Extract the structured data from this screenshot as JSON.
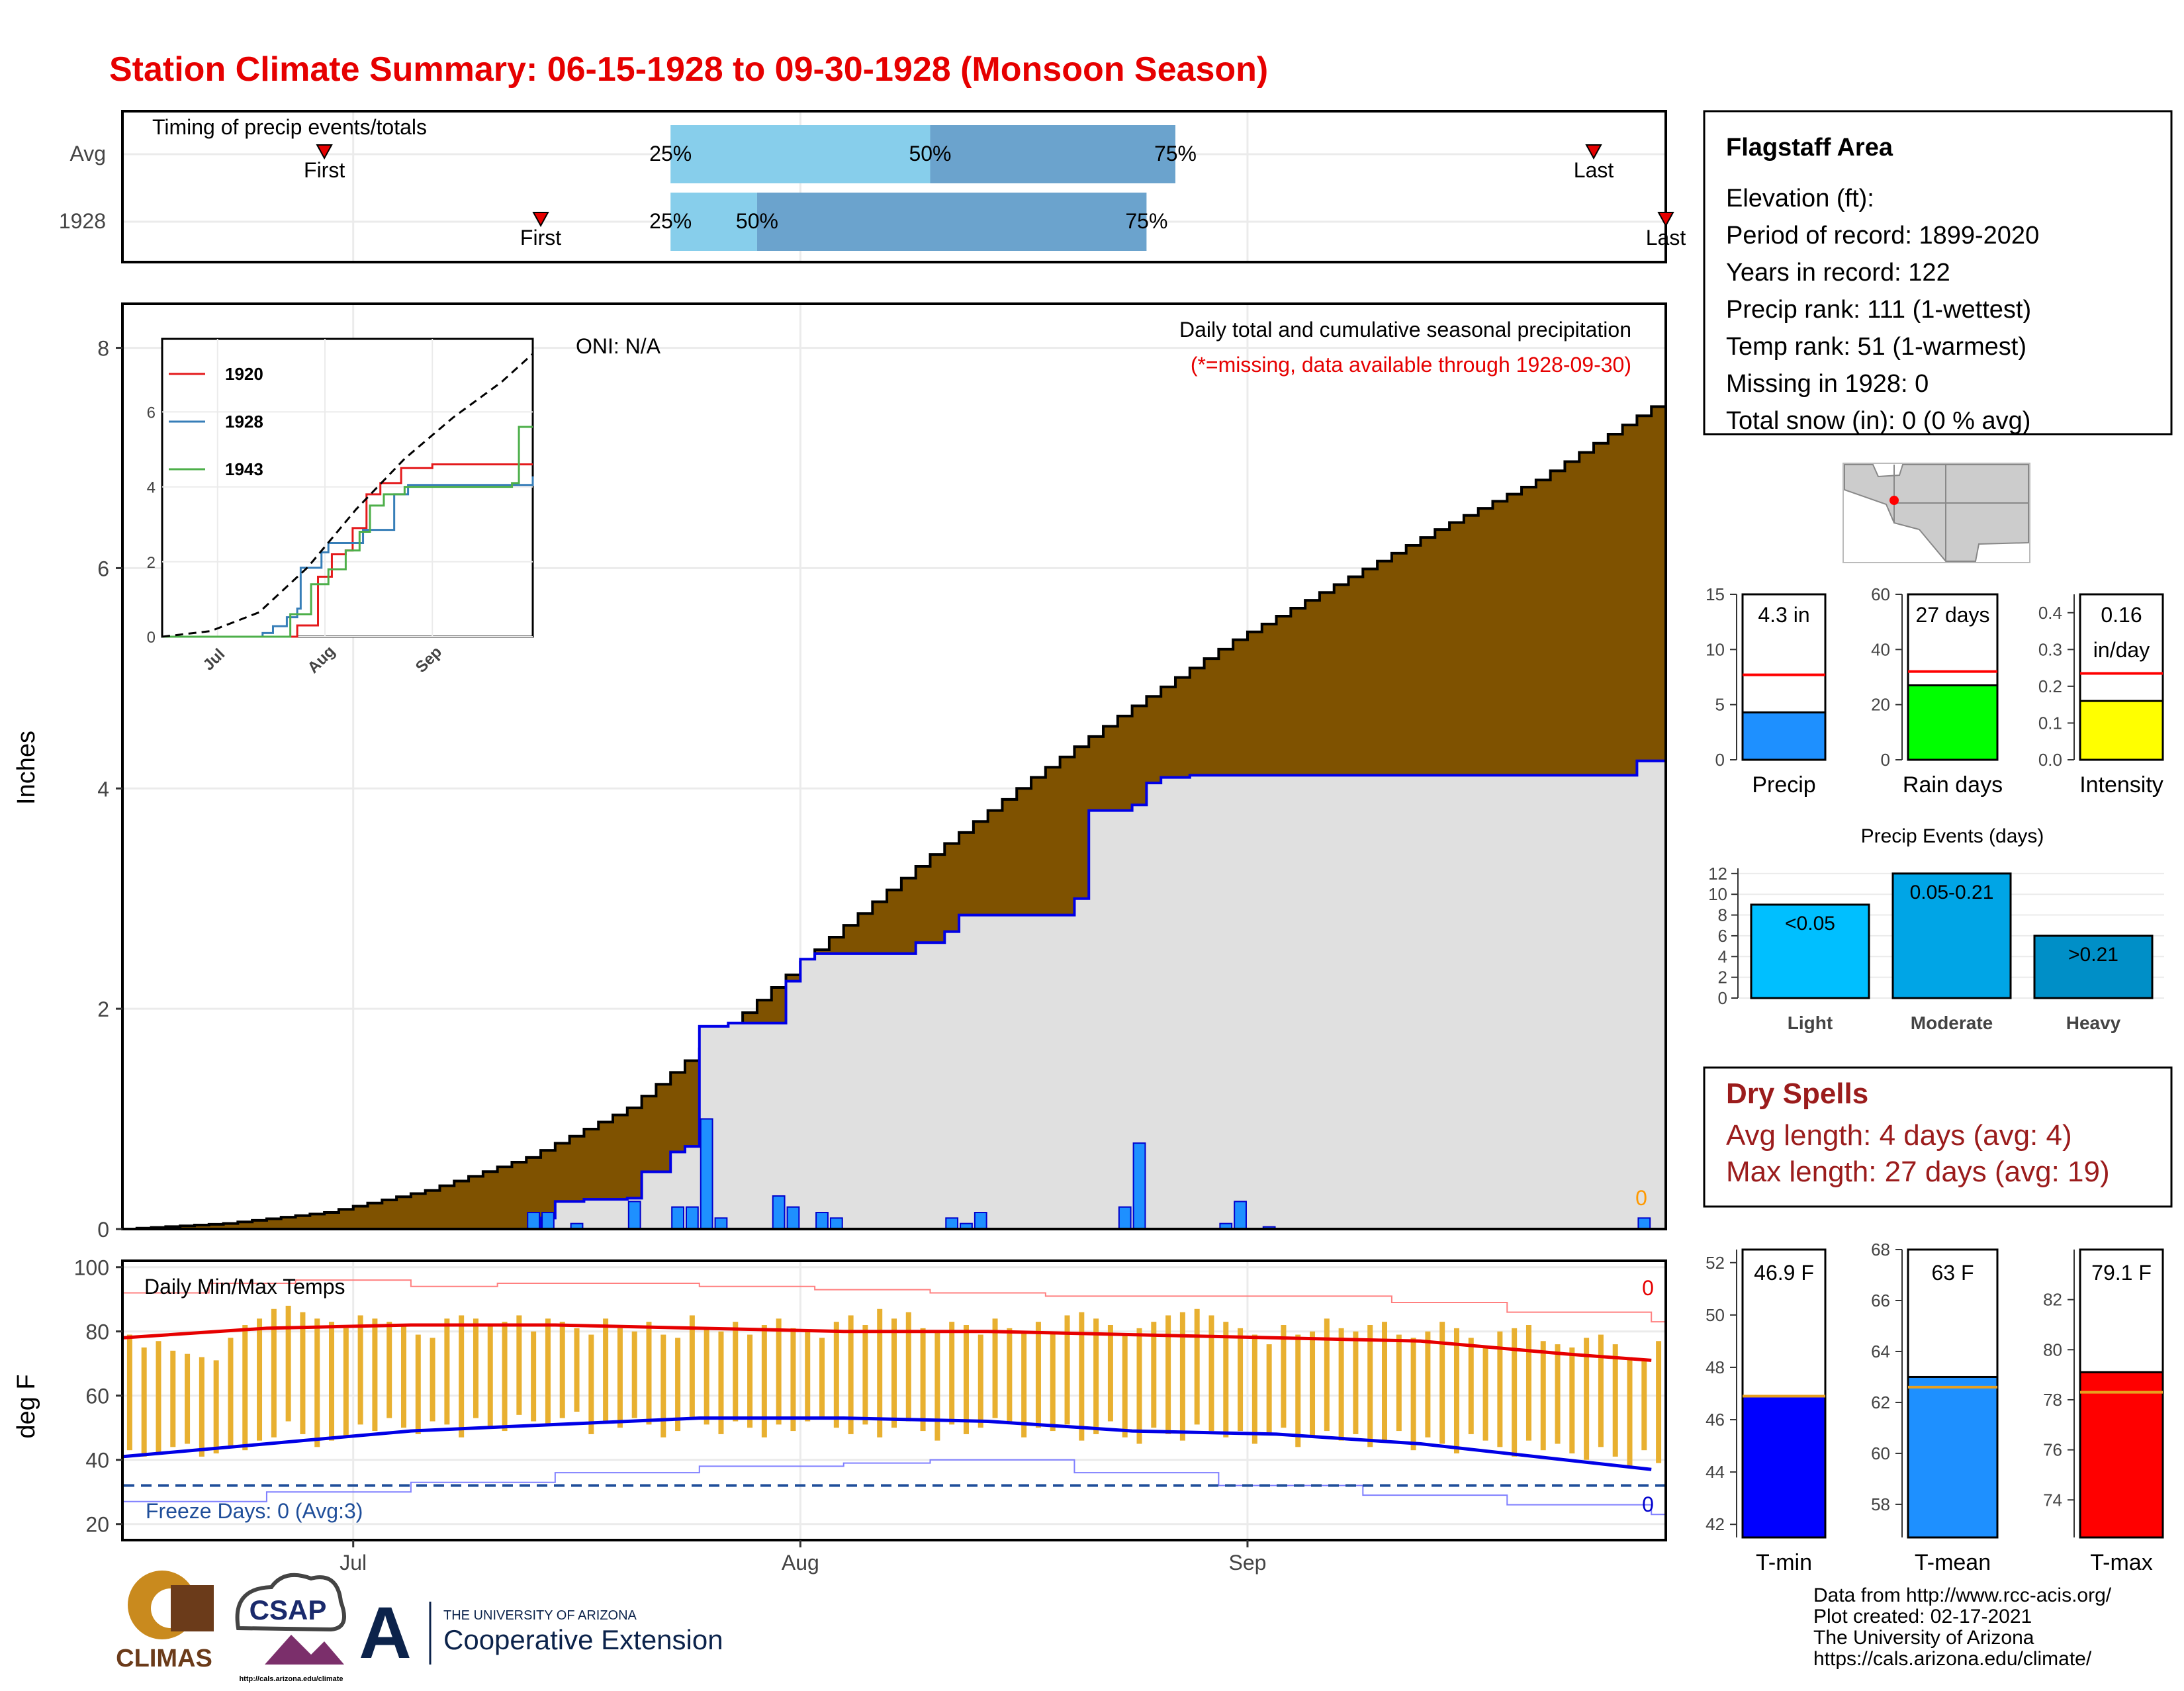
{
  "title": "Station Climate Summary: 06-15-1928 to 09-30-1928 (Monsoon Season)",
  "colors": {
    "title": "#e60000",
    "brown": "#7f5200",
    "blue": "#0000e6",
    "red": "#e60000",
    "gold": "#e8b030",
    "light_blue": "#87ceeb",
    "mid_blue": "#6ba3cd",
    "dry": "#9b1c1c",
    "gray": "#e0e0e0"
  },
  "timing": {
    "label": "Timing of precip events/totals",
    "rows": [
      {
        "name": "Avg",
        "first": "06-29",
        "p25": "07-23",
        "p50": "08-10",
        "p75": "08-27",
        "last": "09-25"
      },
      {
        "name": "1928",
        "first": "07-14",
        "p25": "07-23",
        "p50": "07-29",
        "p75": "08-25",
        "last": "09-30"
      }
    ],
    "first_label": "First",
    "last_label": "Last",
    "p25_label": "25%",
    "p50_label": "50%",
    "p75_label": "75%"
  },
  "station_box": {
    "title": "Flagstaff Area",
    "lines": [
      "Elevation (ft):",
      "Period of record: 1899-2020",
      "Years in record: 122",
      "Precip rank: 111 (1-wettest)",
      "Temp rank: 51 (1-warmest)",
      "Missing in 1928: 0",
      "Total snow (in): 0 (0 % avg)"
    ]
  },
  "precip_panel": {
    "ylabel": "Inches",
    "oni": "ONI: N/A",
    "caption": "Daily total and cumulative seasonal precipitation",
    "missing_note": "(*=missing, data available through 1928-09-30)",
    "missing_count": "0",
    "y_ticks": [
      "0",
      "2",
      "4",
      "6",
      "8"
    ],
    "x_ticks": [
      "Jul",
      "Aug",
      "Sep"
    ]
  },
  "inset": {
    "y_ticks": [
      "0",
      "2",
      "4",
      "6"
    ],
    "x_ticks": [
      "Jul",
      "Aug",
      "Sep"
    ],
    "legend": [
      {
        "name": "1920",
        "color": "#e41a1c"
      },
      {
        "name": "1928",
        "color": "#377eb8"
      },
      {
        "name": "1943",
        "color": "#4daf4a"
      }
    ]
  },
  "temp_panel": {
    "ylabel": "deg F",
    "title": "Daily Min/Max Temps",
    "freeze": "Freeze Days: 0 (Avg:3)",
    "max_count": "0",
    "min_count": "0",
    "y_ticks": [
      "20",
      "40",
      "60",
      "80",
      "100"
    ],
    "x_ticks": [
      "Jul",
      "Aug",
      "Sep"
    ]
  },
  "summary_bars": [
    {
      "name": "Precip",
      "label": "4.3 in",
      "value": 4.3,
      "avg": 7.7,
      "ymax": 15,
      "ticks": [
        "0",
        "5",
        "10",
        "15"
      ],
      "color": "#1e90ff"
    },
    {
      "name": "Rain days",
      "label": "27 days",
      "value": 27,
      "avg": 32,
      "ymax": 60,
      "ticks": [
        "0",
        "20",
        "40",
        "60"
      ],
      "color": "#00ff00"
    },
    {
      "name": "Intensity",
      "label": "0.16 in/day",
      "label_l1": "0.16",
      "label_l2": "in/day",
      "value": 0.16,
      "avg": 0.235,
      "ymax": 0.45,
      "ticks": [
        "0.0",
        "0.1",
        "0.2",
        "0.3",
        "0.4"
      ],
      "color": "#ffff00"
    }
  ],
  "events": {
    "title": "Precip Events (days)",
    "ticks": [
      "0",
      "2",
      "4",
      "6",
      "8",
      "10",
      "12"
    ],
    "bars": [
      {
        "cat": "Light",
        "label": "<0.05",
        "value": 9,
        "color": "#00bfff"
      },
      {
        "cat": "Moderate",
        "label": "0.05-0.21",
        "value": 12,
        "color": "#00a5e6"
      },
      {
        "cat": "Heavy",
        "label": ">0.21",
        "value": 6,
        "color": "#008fc7"
      }
    ]
  },
  "dry_spells": {
    "title": "Dry Spells",
    "avg": "Avg length: 4 days (avg: 4)",
    "max": "Max length: 27 days (avg: 19)"
  },
  "temp_bars": [
    {
      "name": "T-min",
      "label": "46.9 F",
      "value": 46.9,
      "avg": 46.9,
      "min": 41.5,
      "max": 52.5,
      "ticks": [
        "42",
        "44",
        "46",
        "48",
        "50",
        "52"
      ],
      "color": "#0000ff"
    },
    {
      "name": "T-mean",
      "label": "63 F",
      "value": 63,
      "avg": 62.6,
      "min": 56.7,
      "max": 68,
      "ticks": [
        "58",
        "60",
        "62",
        "64",
        "66",
        "68"
      ],
      "color": "#1e90ff"
    },
    {
      "name": "T-max",
      "label": "79.1 F",
      "value": 79.1,
      "avg": 78.3,
      "min": 72.5,
      "max": 84,
      "ticks": [
        "74",
        "76",
        "78",
        "80",
        "82"
      ],
      "color": "#ff0000"
    }
  ],
  "footer": {
    "lines": [
      "Data from http://www.rcc-acis.org/",
      "Plot created: 02-17-2021",
      "The University of Arizona",
      "https://cals.arizona.edu/climate/"
    ],
    "logo1": "CLIMAS",
    "logo2": "CSAP",
    "logo2_sub": "http://cals.arizona.edu/climate",
    "ua_small": "THE UNIVERSITY OF ARIZONA",
    "ua_big": "Cooperative Extension",
    "ua_letter": "A"
  },
  "chart_data": [
    {
      "type": "area",
      "title": "Daily total and cumulative seasonal precipitation",
      "ylabel": "Inches",
      "ylim": [
        0,
        8.4
      ],
      "x_start": "06-15",
      "x_end": "09-30",
      "series": [
        {
          "name": "Cumulative 1928",
          "points": [
            [
              "06-15",
              0
            ],
            [
              "07-14",
              0.1
            ],
            [
              "07-15",
              0.25
            ],
            [
              "07-17",
              0.27
            ],
            [
              "07-20",
              0.28
            ],
            [
              "07-21",
              0.52
            ],
            [
              "07-23",
              0.7
            ],
            [
              "07-24",
              0.75
            ],
            [
              "07-25",
              1.84
            ],
            [
              "07-27",
              1.87
            ],
            [
              "07-31",
              2.25
            ],
            [
              "08-01",
              2.45
            ],
            [
              "08-02",
              2.5
            ],
            [
              "08-09",
              2.6
            ],
            [
              "08-11",
              2.7
            ],
            [
              "08-12",
              2.85
            ],
            [
              "08-19",
              2.85
            ],
            [
              "08-20",
              3.0
            ],
            [
              "08-21",
              3.8
            ],
            [
              "08-24",
              3.85
            ],
            [
              "08-25",
              4.05
            ],
            [
              "08-26",
              4.1
            ],
            [
              "08-28",
              4.12
            ],
            [
              "09-28",
              4.25
            ],
            [
              "09-30",
              4.28
            ]
          ]
        },
        {
          "name": "Average cumulative",
          "points": [
            [
              "06-15",
              0
            ],
            [
              "06-22",
              0.05
            ],
            [
              "06-29",
              0.15
            ],
            [
              "07-06",
              0.35
            ],
            [
              "07-13",
              0.65
            ],
            [
              "07-20",
              1.1
            ],
            [
              "07-27",
              1.85
            ],
            [
              "08-03",
              2.65
            ],
            [
              "08-10",
              3.4
            ],
            [
              "08-17",
              4.1
            ],
            [
              "08-24",
              4.75
            ],
            [
              "08-31",
              5.35
            ],
            [
              "09-07",
              5.85
            ],
            [
              "09-14",
              6.35
            ],
            [
              "09-21",
              6.8
            ],
            [
              "09-30",
              7.55
            ]
          ]
        }
      ],
      "daily": [
        [
          "07-13",
          0.15
        ],
        [
          "07-14",
          0.15
        ],
        [
          "07-16",
          0.05
        ],
        [
          "07-20",
          0.25
        ],
        [
          "07-23",
          0.2
        ],
        [
          "07-24",
          0.2
        ],
        [
          "07-25",
          1.0
        ],
        [
          "07-26",
          0.1
        ],
        [
          "07-30",
          0.3
        ],
        [
          "07-31",
          0.2
        ],
        [
          "08-02",
          0.15
        ],
        [
          "08-03",
          0.1
        ],
        [
          "08-11",
          0.1
        ],
        [
          "08-12",
          0.05
        ],
        [
          "08-13",
          0.15
        ],
        [
          "08-23",
          0.2
        ],
        [
          "08-24",
          0.78
        ],
        [
          "08-30",
          0.05
        ],
        [
          "08-31",
          0.25
        ],
        [
          "09-02",
          0.02
        ],
        [
          "09-28",
          0.1
        ]
      ]
    },
    {
      "type": "line",
      "title": "",
      "series": [
        {
          "name": "1920",
          "points": [
            [
              "06-15",
              0
            ],
            [
              "07-21",
              0
            ],
            [
              "07-24",
              0.3
            ],
            [
              "07-30",
              1.6
            ],
            [
              "08-03",
              2.2
            ],
            [
              "08-07",
              2.3
            ],
            [
              "08-09",
              2.9
            ],
            [
              "08-13",
              3.8
            ],
            [
              "08-17",
              4.1
            ],
            [
              "08-23",
              4.5
            ],
            [
              "09-01",
              4.6
            ],
            [
              "09-30",
              4.6
            ]
          ]
        },
        {
          "name": "1928",
          "points": [
            [
              "06-15",
              0
            ],
            [
              "07-14",
              0.1
            ],
            [
              "07-17",
              0.28
            ],
            [
              "07-21",
              0.52
            ],
            [
              "07-24",
              0.75
            ],
            [
              "07-25",
              1.84
            ],
            [
              "07-31",
              2.25
            ],
            [
              "08-02",
              2.5
            ],
            [
              "08-12",
              2.85
            ],
            [
              "08-21",
              3.8
            ],
            [
              "08-25",
              4.05
            ],
            [
              "09-30",
              4.28
            ]
          ]
        },
        {
          "name": "1943",
          "points": [
            [
              "06-15",
              0
            ],
            [
              "07-18",
              0
            ],
            [
              "07-22",
              0.6
            ],
            [
              "07-28",
              1.4
            ],
            [
              "08-02",
              1.8
            ],
            [
              "08-07",
              2.3
            ],
            [
              "08-11",
              2.8
            ],
            [
              "08-14",
              3.5
            ],
            [
              "08-18",
              3.8
            ],
            [
              "08-24",
              4.0
            ],
            [
              "09-24",
              4.1
            ],
            [
              "09-26",
              5.6
            ],
            [
              "09-30",
              5.6
            ]
          ]
        },
        {
          "name": "Average",
          "points": [
            [
              "06-15",
              0
            ],
            [
              "06-29",
              0.15
            ],
            [
              "07-13",
              0.65
            ],
            [
              "07-27",
              1.85
            ],
            [
              "08-10",
              3.4
            ],
            [
              "08-24",
              4.75
            ],
            [
              "09-07",
              5.85
            ],
            [
              "09-21",
              6.8
            ],
            [
              "09-30",
              7.55
            ]
          ]
        }
      ]
    },
    {
      "type": "bar",
      "title": "Daily Min/Max Temps",
      "ylabel": "deg F",
      "ylim": [
        15,
        102
      ],
      "mins": [
        43,
        41,
        42,
        44,
        45,
        41,
        42,
        44,
        43,
        46,
        47,
        52,
        48,
        44,
        46,
        47,
        51,
        49,
        53,
        50,
        48,
        52,
        51,
        47,
        53,
        50,
        49,
        54,
        52,
        51,
        53,
        55,
        48,
        52,
        50,
        53,
        51,
        47,
        49,
        53,
        51,
        48,
        52,
        50,
        47,
        51,
        49,
        52,
        53,
        50,
        48,
        51,
        47,
        50,
        52,
        49,
        46,
        51,
        48,
        50,
        53,
        52,
        47,
        50,
        49,
        51,
        46,
        48,
        52,
        47,
        45,
        50,
        48,
        46,
        51,
        49,
        47,
        49,
        45,
        48,
        50,
        44,
        47,
        49,
        46,
        48,
        44,
        46,
        49,
        43,
        47,
        45,
        42,
        48,
        46,
        44,
        41,
        46,
        43,
        45,
        42,
        40,
        44,
        41,
        38,
        43,
        39
      ],
      "maxs": [
        79,
        75,
        77,
        74,
        73,
        72,
        71,
        78,
        82,
        84,
        87,
        88,
        86,
        84,
        83,
        81,
        85,
        84,
        83,
        82,
        79,
        78,
        84,
        85,
        84,
        82,
        83,
        85,
        80,
        84,
        83,
        81,
        79,
        84,
        81,
        80,
        83,
        79,
        78,
        85,
        81,
        80,
        83,
        79,
        82,
        84,
        81,
        80,
        78,
        83,
        85,
        82,
        87,
        84,
        86,
        81,
        80,
        83,
        82,
        79,
        84,
        81,
        80,
        83,
        80,
        85,
        86,
        84,
        82,
        79,
        81,
        83,
        85,
        86,
        87,
        85,
        83,
        81,
        79,
        76,
        82,
        79,
        80,
        84,
        81,
        80,
        82,
        83,
        79,
        78,
        80,
        83,
        81,
        78,
        75,
        80,
        81,
        82,
        77,
        76,
        75,
        78,
        79,
        76,
        72,
        71,
        77
      ],
      "series": [
        {
          "name": "Record max",
          "points": [
            [
              0,
              92
            ],
            [
              6,
              95
            ],
            [
              12,
              96
            ],
            [
              20,
              94
            ],
            [
              26,
              95
            ],
            [
              32,
              95
            ],
            [
              40,
              94
            ],
            [
              48,
              93
            ],
            [
              56,
              92
            ],
            [
              64,
              91
            ],
            [
              72,
              91
            ],
            [
              80,
              91
            ],
            [
              88,
              89
            ],
            [
              96,
              86
            ],
            [
              106,
              83
            ]
          ]
        },
        {
          "name": "Avg max",
          "points": [
            [
              0,
              78
            ],
            [
              10,
              81
            ],
            [
              20,
              82
            ],
            [
              30,
              82
            ],
            [
              40,
              81
            ],
            [
              50,
              80
            ],
            [
              60,
              80
            ],
            [
              70,
              79
            ],
            [
              80,
              78
            ],
            [
              90,
              77
            ],
            [
              100,
              73
            ],
            [
              106,
              71
            ]
          ]
        },
        {
          "name": "Avg min",
          "points": [
            [
              0,
              41
            ],
            [
              10,
              45
            ],
            [
              20,
              49
            ],
            [
              30,
              51
            ],
            [
              40,
              53
            ],
            [
              50,
              53
            ],
            [
              60,
              52
            ],
            [
              70,
              49
            ],
            [
              80,
              48
            ],
            [
              90,
              45
            ],
            [
              100,
              40
            ],
            [
              106,
              37
            ]
          ]
        },
        {
          "name": "Record min",
          "points": [
            [
              0,
              27
            ],
            [
              10,
              30
            ],
            [
              20,
              33
            ],
            [
              30,
              36
            ],
            [
              40,
              38
            ],
            [
              50,
              39
            ],
            [
              56,
              40
            ],
            [
              66,
              36
            ],
            [
              76,
              32
            ],
            [
              86,
              29
            ],
            [
              96,
              26
            ],
            [
              106,
              23
            ]
          ]
        }
      ],
      "freeze_line": 32
    }
  ]
}
